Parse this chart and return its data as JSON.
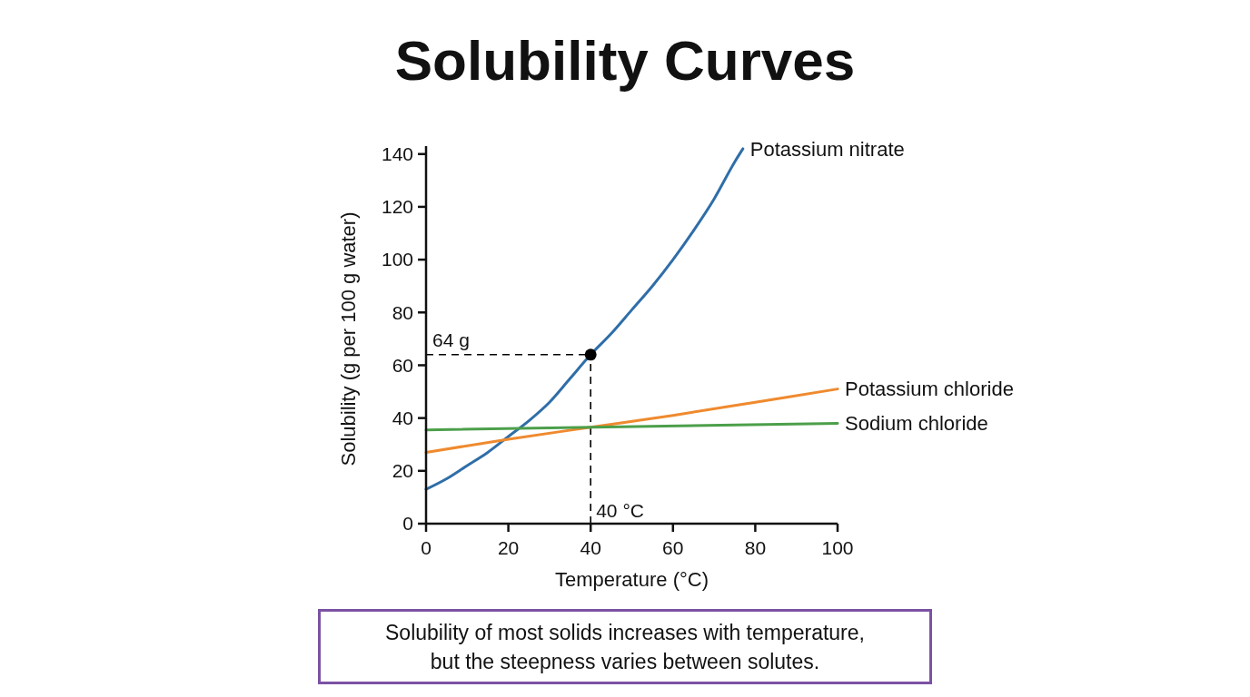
{
  "chart_data": {
    "type": "line",
    "title": "Solubility Curves",
    "xlabel": "Temperature (°C)",
    "ylabel": "Solubility (g per 100 g water)",
    "xlim": [
      0,
      100
    ],
    "ylim": [
      0,
      143
    ],
    "xticks": [
      0,
      20,
      40,
      60,
      80,
      100
    ],
    "yticks": [
      0,
      20,
      40,
      60,
      80,
      100,
      120,
      140
    ],
    "legend": false,
    "series": [
      {
        "name": "Potassium nitrate",
        "color": "#2f6ea8",
        "x": [
          0,
          5,
          10,
          15,
          20,
          25,
          30,
          35,
          40,
          45,
          50,
          55,
          60,
          65,
          70,
          75,
          77
        ],
        "values": [
          13,
          17,
          22,
          27,
          33,
          39,
          46,
          55,
          64,
          72,
          81,
          90,
          100,
          111,
          123,
          137,
          142
        ]
      },
      {
        "name": "Potassium chloride",
        "color": "#ef8a2e",
        "x": [
          0,
          20,
          40,
          60,
          80,
          100
        ],
        "values": [
          27,
          32,
          36.5,
          41,
          46,
          51
        ]
      },
      {
        "name": "Sodium chloride",
        "color": "#4c9f4a",
        "x": [
          0,
          100
        ],
        "values": [
          35.5,
          38
        ]
      },
      {
        "type": "scatter",
        "color": "#000000",
        "marker": "circle",
        "x": [
          40
        ],
        "values": [
          64
        ]
      }
    ],
    "ref_lines": [
      {
        "axis": "y",
        "value": 64,
        "label": "64 g",
        "color": "#000000",
        "line_style": "dashed"
      },
      {
        "axis": "x",
        "value": 40,
        "label": "40 °C",
        "color": "#000000",
        "line_style": "dashed"
      }
    ],
    "annotations": [
      "Solubility of most solids increases with temperature, but the steepness varies between solutes."
    ]
  }
}
